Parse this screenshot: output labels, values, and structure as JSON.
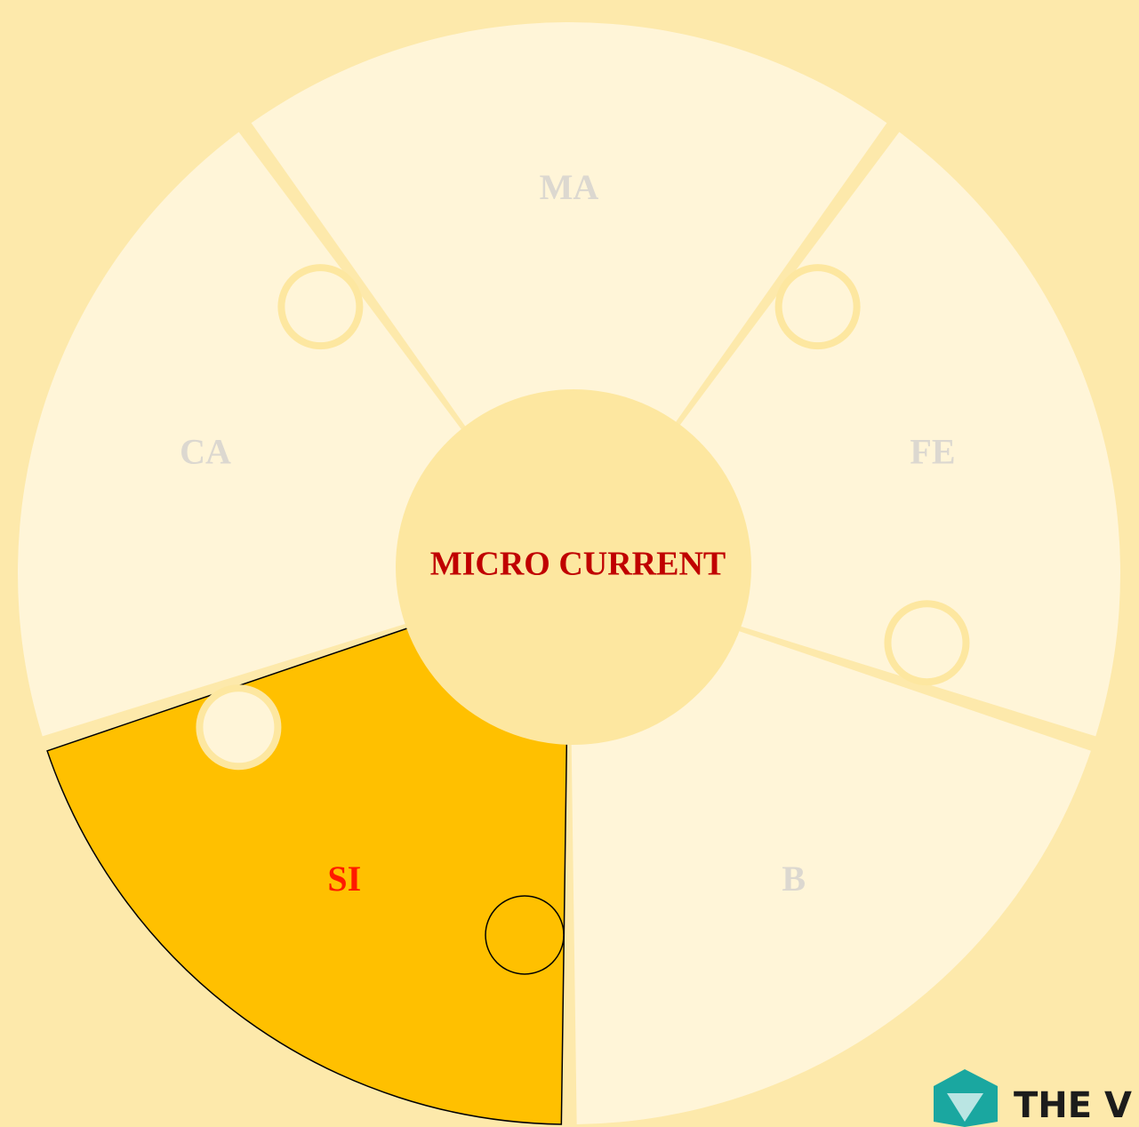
{
  "center": {
    "label": "MICRO CURRENT"
  },
  "pieces": [
    {
      "label": "MA"
    },
    {
      "label": "FE"
    },
    {
      "label": "B"
    },
    {
      "label": "SI",
      "highlighted": true
    },
    {
      "label": "CA"
    }
  ],
  "logo": {
    "text": "THE V"
  }
}
